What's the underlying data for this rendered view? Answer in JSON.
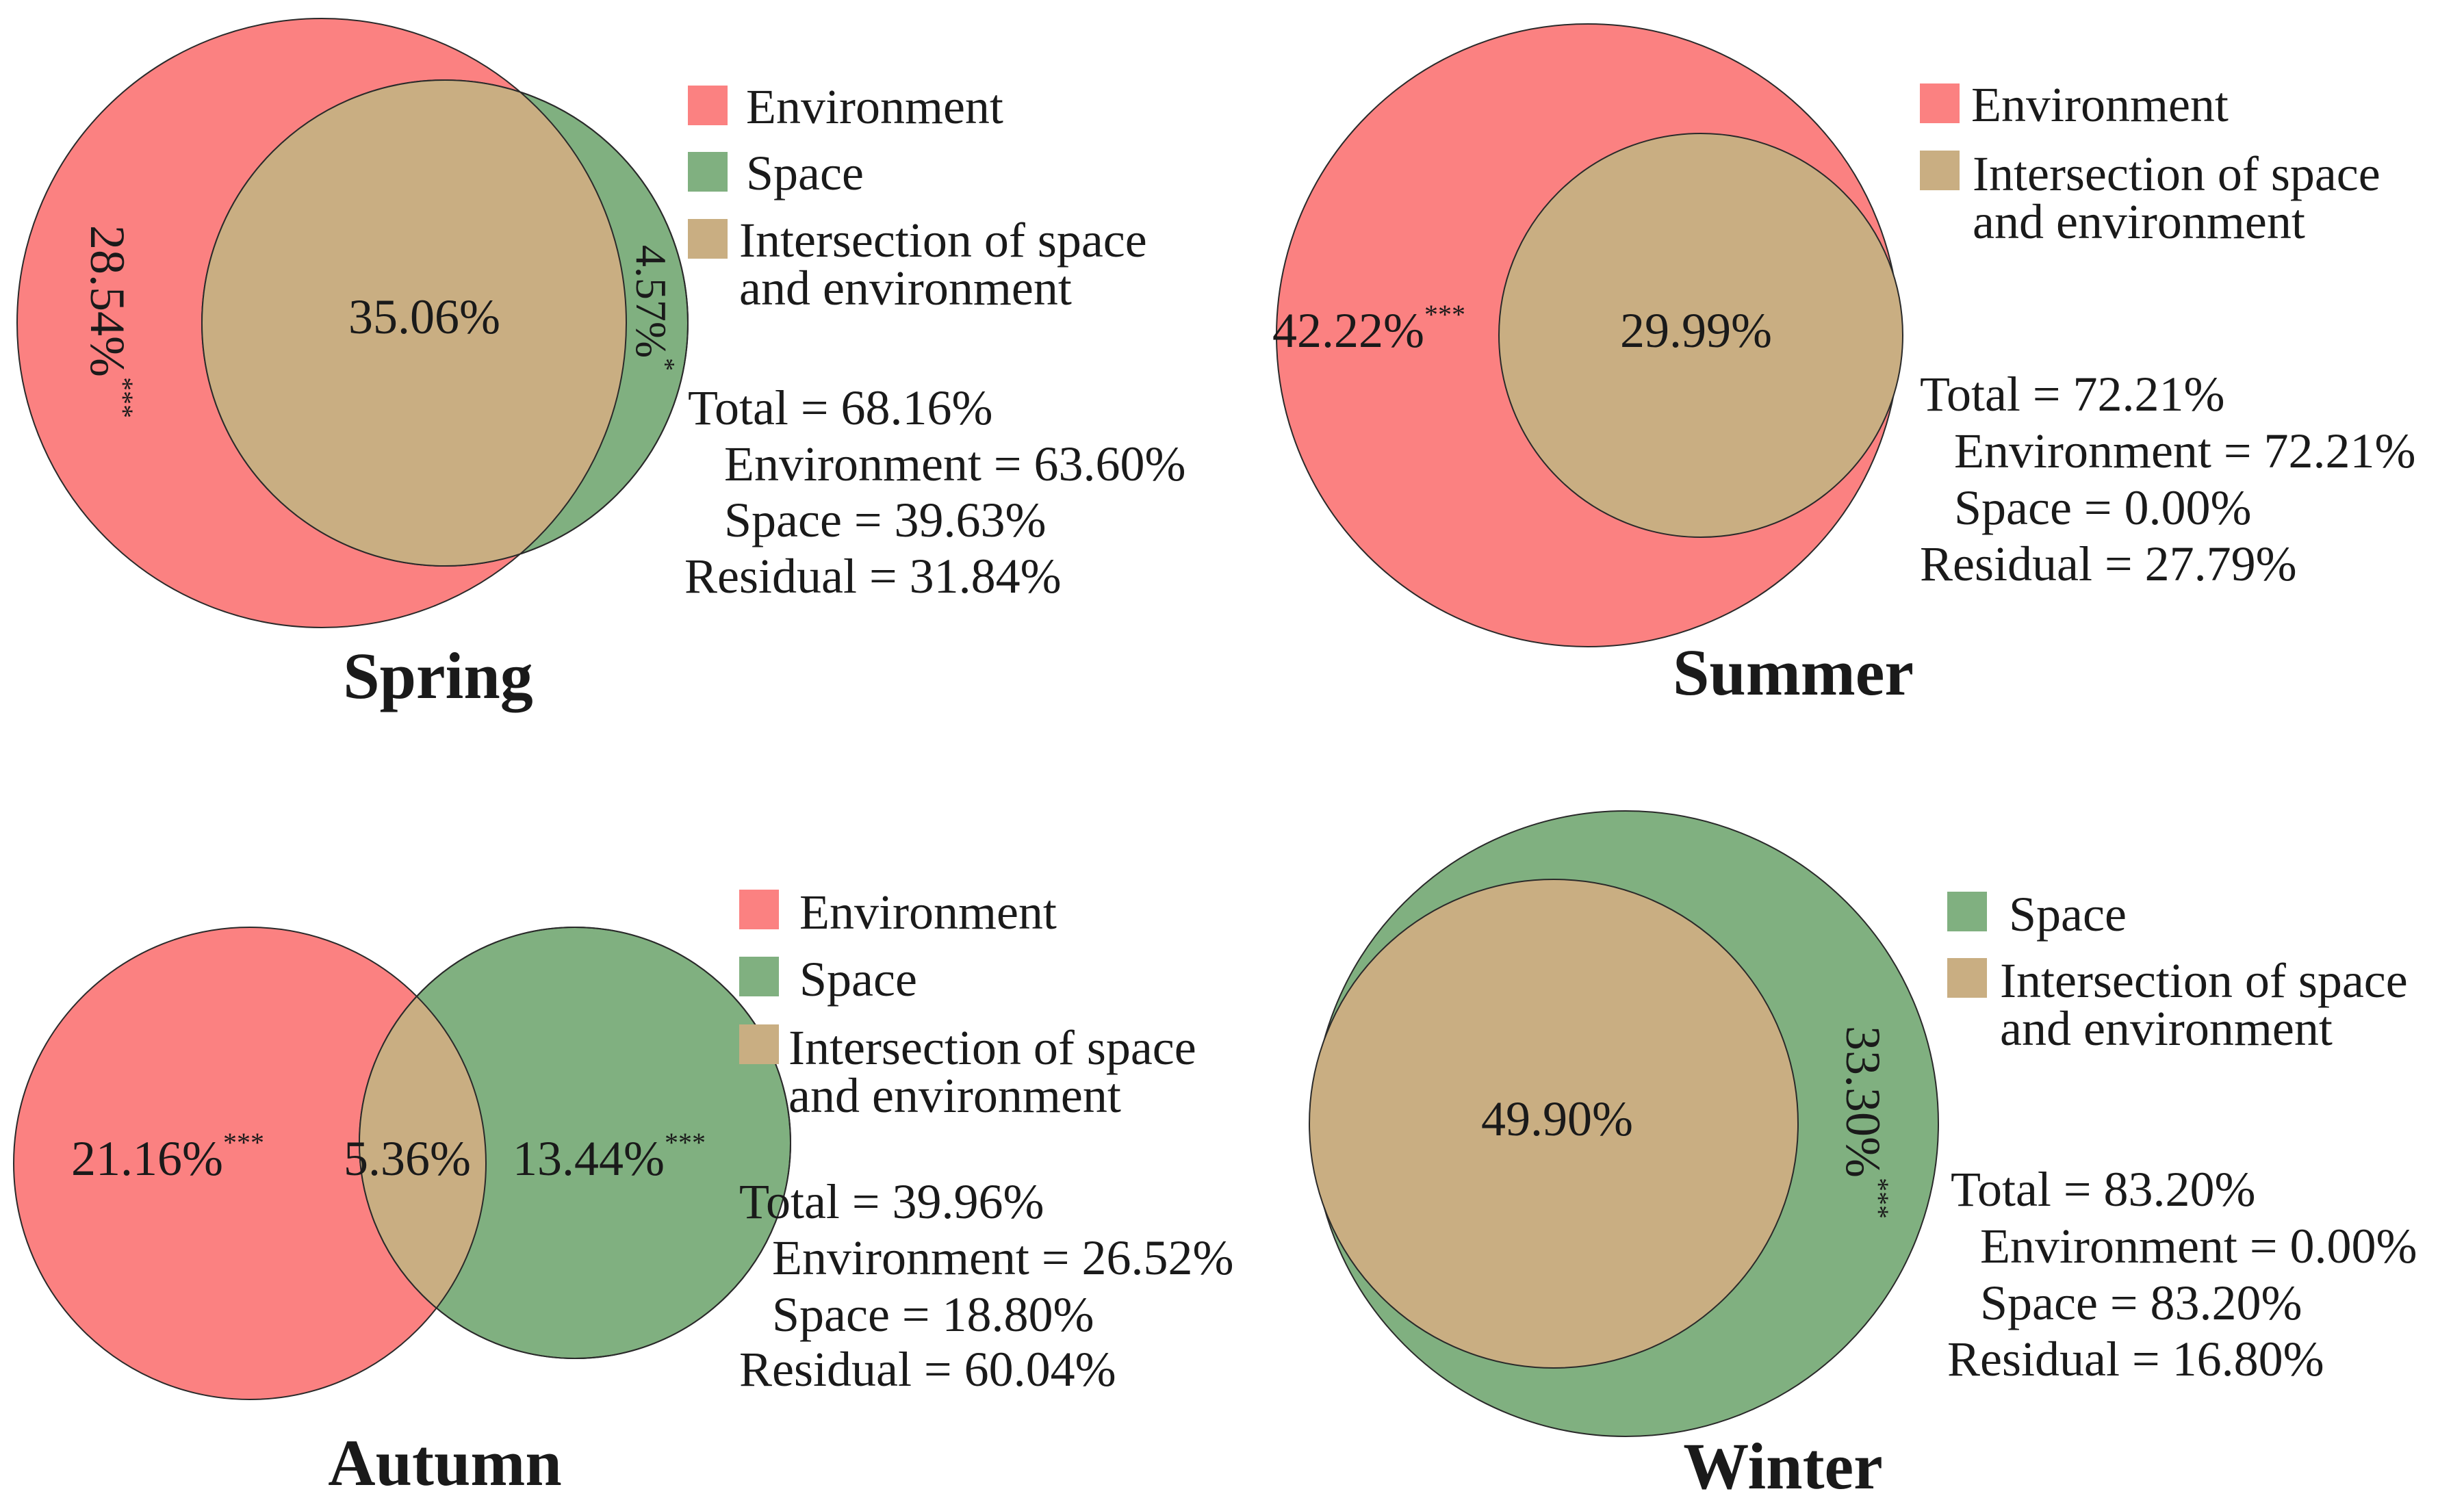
{
  "colors": {
    "environment": "#fb8181",
    "space": "#80b080",
    "intersection": "#c9ae82",
    "text": "#1a1a1a"
  },
  "chart_data": [
    {
      "type": "venn",
      "title": "Spring",
      "sets": [
        "Environment",
        "Space"
      ],
      "fractions": {
        "environment_only": 28.54,
        "intersection": 35.06,
        "space_only": 4.57
      },
      "labels": {
        "environment_only": {
          "value": "28.54%",
          "sig": "***"
        },
        "intersection": {
          "value": "35.06%",
          "sig": ""
        },
        "space_only": {
          "value": "4.57%",
          "sig": "*"
        }
      },
      "legend": [
        {
          "key": "environment",
          "lines": [
            "Environment"
          ]
        },
        {
          "key": "space",
          "lines": [
            "Space"
          ]
        },
        {
          "key": "intersection",
          "lines": [
            "Intersection of space",
            "and environment"
          ]
        }
      ],
      "stats": [
        {
          "text": "Total = 68.16%",
          "indent": false
        },
        {
          "text": "Environment = 63.60%",
          "indent": true
        },
        {
          "text": "Space = 39.63%",
          "indent": true
        },
        {
          "text": "Residual = 31.84%",
          "indent": false
        }
      ]
    },
    {
      "type": "venn",
      "title": "Summer",
      "sets": [
        "Environment",
        "Space"
      ],
      "fractions": {
        "environment_only": 42.22,
        "intersection": 29.99,
        "space_only": 0.0
      },
      "labels": {
        "environment_only": {
          "value": "42.22%",
          "sig": "***"
        },
        "intersection": {
          "value": "29.99%",
          "sig": ""
        }
      },
      "legend": [
        {
          "key": "environment",
          "lines": [
            "Environment"
          ]
        },
        {
          "key": "intersection",
          "lines": [
            "Intersection of space",
            "and environment"
          ]
        }
      ],
      "stats": [
        {
          "text": "Total = 72.21%",
          "indent": false
        },
        {
          "text": "Environment = 72.21%",
          "indent": true
        },
        {
          "text": "Space = 0.00%",
          "indent": true
        },
        {
          "text": "Residual = 27.79%",
          "indent": false
        }
      ]
    },
    {
      "type": "venn",
      "title": "Autumn",
      "sets": [
        "Environment",
        "Space"
      ],
      "fractions": {
        "environment_only": 21.16,
        "intersection": 5.36,
        "space_only": 13.44
      },
      "labels": {
        "environment_only": {
          "value": "21.16%",
          "sig": "***"
        },
        "intersection": {
          "value": "5.36%",
          "sig": ""
        },
        "space_only": {
          "value": "13.44%",
          "sig": "***"
        }
      },
      "legend": [
        {
          "key": "environment",
          "lines": [
            "Environment"
          ]
        },
        {
          "key": "space",
          "lines": [
            "Space"
          ]
        },
        {
          "key": "intersection",
          "lines": [
            "Intersection of space",
            "and environment"
          ]
        }
      ],
      "stats": [
        {
          "text": "Total = 39.96%",
          "indent": false
        },
        {
          "text": "Environment = 26.52%",
          "indent": true
        },
        {
          "text": "Space = 18.80%",
          "indent": true
        },
        {
          "text": "Residual = 60.04%",
          "indent": false
        }
      ]
    },
    {
      "type": "venn",
      "title": "Winter",
      "sets": [
        "Environment",
        "Space"
      ],
      "fractions": {
        "environment_only": 0.0,
        "intersection": 49.9,
        "space_only": 33.3
      },
      "labels": {
        "intersection": {
          "value": "49.90%",
          "sig": ""
        },
        "space_only": {
          "value": "33.30%",
          "sig": "***"
        }
      },
      "legend": [
        {
          "key": "space",
          "lines": [
            "Space"
          ]
        },
        {
          "key": "intersection",
          "lines": [
            "Intersection of space",
            "and environment"
          ]
        }
      ],
      "stats": [
        {
          "text": "Total = 83.20%",
          "indent": false
        },
        {
          "text": "Environment = 0.00%",
          "indent": true
        },
        {
          "text": "Space = 83.20%",
          "indent": true
        },
        {
          "text": "Residual = 16.80%",
          "indent": false
        }
      ]
    }
  ]
}
